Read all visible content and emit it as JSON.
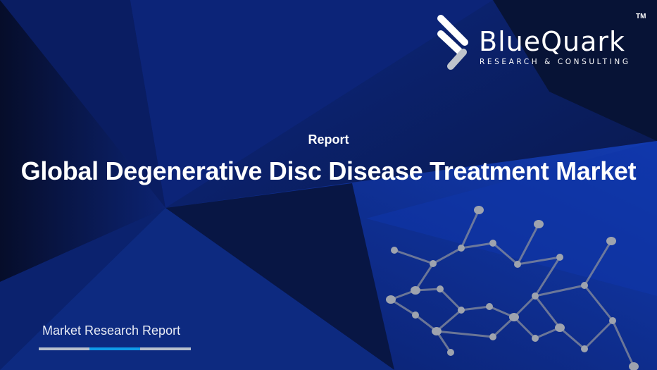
{
  "brand": {
    "name": "BlueQuark",
    "tagline": "RESEARCH & CONSULTING",
    "trademark": "TM"
  },
  "header": {
    "label": "Report",
    "title": "Global Degenerative Disc Disease Treatment Market"
  },
  "footer": {
    "caption": "Market Research Report",
    "progress_colors": [
      "#b6bfcc",
      "#0f9be8",
      "#b6bfcc"
    ]
  },
  "colors": {
    "background": "#0a1a4f",
    "accent": "#0f9be8"
  }
}
